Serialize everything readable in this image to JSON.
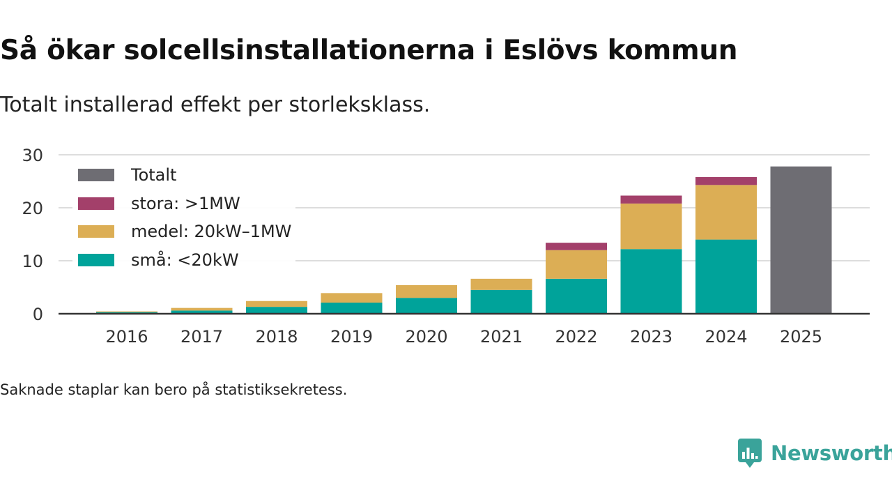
{
  "header": {
    "title": "Så ökar solcellsinstallationerna i Eslövs kommun",
    "subtitle": "Totalt installerad effekt per storleksklass."
  },
  "footer": {
    "note": "Saknade staplar kan bero på statistiksekretess.",
    "brand": "Newsworthy"
  },
  "colors": {
    "small": "#00a39a",
    "medium": "#dcae55",
    "large": "#a3406a",
    "total": "#6e6d73",
    "grid": "#dddddd",
    "axis": "#333333",
    "brand": "#3aa39a"
  },
  "chart_data": {
    "type": "bar",
    "stacked": true,
    "title": "Så ökar solcellsinstallationerna i Eslövs kommun",
    "subtitle": "Totalt installerad effekt per storleksklass.",
    "categories": [
      "2016",
      "2017",
      "2018",
      "2019",
      "2020",
      "2021",
      "2022",
      "2023",
      "2024",
      "2025"
    ],
    "series": [
      {
        "key": "small",
        "name": "små: <20kW",
        "values": [
          0.3,
          0.6,
          1.3,
          2.1,
          3.0,
          4.5,
          6.6,
          12.2,
          14.0,
          null
        ]
      },
      {
        "key": "medium",
        "name": "medel: 20kW–1MW",
        "values": [
          0.15,
          0.5,
          1.1,
          1.8,
          2.4,
          2.1,
          5.4,
          8.6,
          10.3,
          null
        ]
      },
      {
        "key": "large",
        "name": "stora: >1MW",
        "values": [
          0,
          0,
          0,
          0,
          0,
          0,
          1.4,
          1.5,
          1.5,
          null
        ]
      },
      {
        "key": "total",
        "name": "Totalt",
        "values": [
          null,
          null,
          null,
          null,
          null,
          null,
          null,
          null,
          null,
          27.8
        ]
      }
    ],
    "legend_order": [
      "total",
      "large",
      "medium",
      "small"
    ],
    "legend": [
      "Totalt",
      "stora: >1MW",
      "medel: 20kW–1MW",
      "små: <20kW"
    ],
    "xlabel": "",
    "ylabel": "",
    "ylim": [
      0,
      30
    ],
    "yticks": [
      0,
      10,
      20,
      30
    ],
    "grid": true,
    "legend_position": "top-left"
  }
}
